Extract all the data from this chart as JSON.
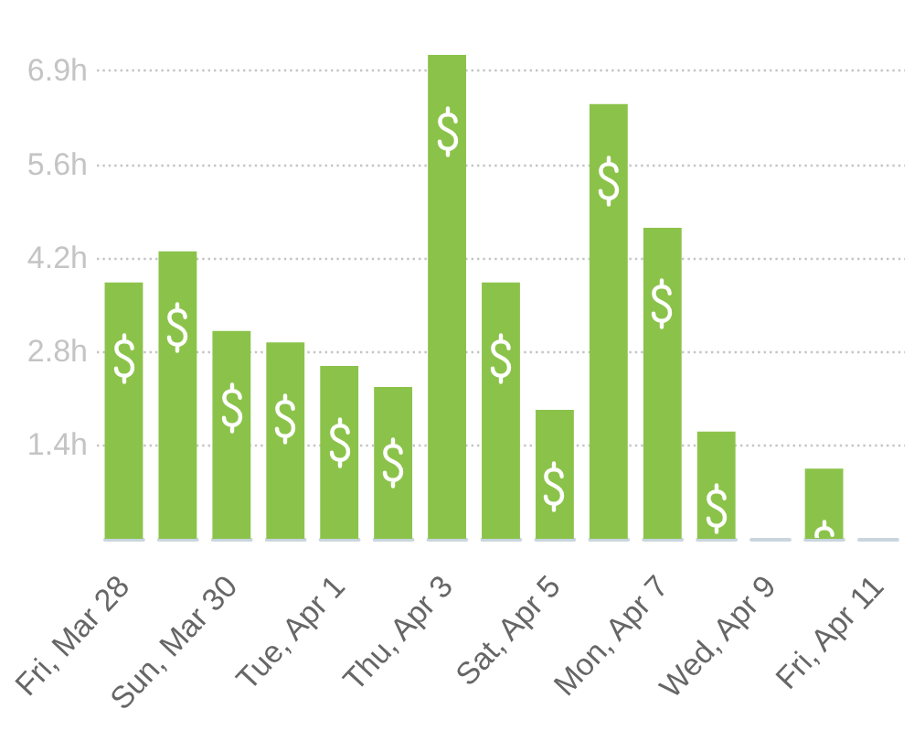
{
  "chart_data": {
    "type": "bar",
    "categories": [
      "Fri, Mar 28",
      null,
      "Sun, Mar 30",
      null,
      "Tue, Apr 1",
      null,
      "Thu, Apr 3",
      null,
      "Sat, Apr 5",
      null,
      "Mon, Apr 7",
      null,
      "Wed, Apr 9",
      null,
      "Fri, Apr 11"
    ],
    "values": [
      3.8,
      4.26,
      3.08,
      2.91,
      2.56,
      2.25,
      7.17,
      3.8,
      1.91,
      6.44,
      4.61,
      1.59,
      0,
      1.04,
      0
    ],
    "color": "#8bc34a",
    "ylim": [
      0,
      7.17
    ],
    "yticks": [
      {
        "value": 1.39,
        "label": "1.4h"
      },
      {
        "value": 2.78,
        "label": "2.8h"
      },
      {
        "value": 4.16,
        "label": "4.2h"
      },
      {
        "value": 5.55,
        "label": "5.6h"
      },
      {
        "value": 6.94,
        "label": "6.9h"
      }
    ],
    "grid": "y"
  }
}
